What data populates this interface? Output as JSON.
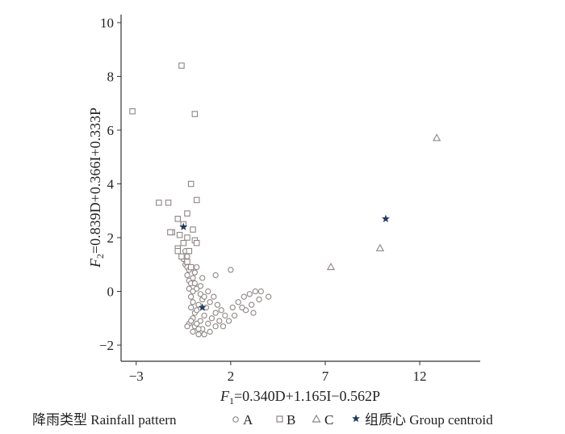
{
  "chart_data": {
    "type": "scatter",
    "xlabel": "F₁=0.340D+1.165I−0.562P",
    "ylabel": "F₂=0.839D+0.366I+0.333P",
    "xlabel_parts": {
      "f": "F",
      "sub": "1",
      "rest": "=0.340D+1.165I−0.562P"
    },
    "ylabel_parts": {
      "f": "F",
      "sub": "2",
      "rest": "=0.839D+0.366I+0.333P"
    },
    "xlim": [
      -3.8,
      15.2
    ],
    "ylim": [
      -2.6,
      10.3
    ],
    "xticks": [
      -3,
      2,
      7,
      12
    ],
    "yticks": [
      -2,
      0,
      2,
      4,
      6,
      8,
      10
    ],
    "grid": false,
    "legend": {
      "title": "降雨类型 Rainfall pattern",
      "entries": [
        {
          "marker": "○",
          "label": "A"
        },
        {
          "marker": "□",
          "label": "B"
        },
        {
          "marker": "△",
          "label": "C"
        },
        {
          "marker": "★",
          "label": "组质心 Group centroid"
        }
      ],
      "placement": "bottom"
    },
    "series": [
      {
        "name": "A",
        "marker": "circle",
        "points": [
          [
            -0.5,
            1.2
          ],
          [
            -0.4,
            1.0
          ],
          [
            -0.3,
            0.9
          ],
          [
            -0.2,
            0.8
          ],
          [
            -0.3,
            0.6
          ],
          [
            -0.2,
            0.4
          ],
          [
            -0.1,
            0.3
          ],
          [
            -0.2,
            0.1
          ],
          [
            0.0,
            0.0
          ],
          [
            -0.1,
            -0.2
          ],
          [
            0.0,
            -0.4
          ],
          [
            -0.1,
            -0.6
          ],
          [
            0.1,
            -0.8
          ],
          [
            0.0,
            -1.0
          ],
          [
            -0.2,
            -1.2
          ],
          [
            0.1,
            -1.3
          ],
          [
            0.0,
            -1.5
          ],
          [
            0.3,
            -1.6
          ],
          [
            0.5,
            -1.4
          ],
          [
            0.8,
            -1.2
          ],
          [
            1.0,
            -1.0
          ],
          [
            1.2,
            -0.8
          ],
          [
            0.6,
            -0.9
          ],
          [
            0.4,
            -1.1
          ],
          [
            0.2,
            -0.7
          ],
          [
            0.3,
            -0.5
          ],
          [
            0.5,
            -0.3
          ],
          [
            0.4,
            -0.1
          ],
          [
            0.2,
            0.1
          ],
          [
            0.1,
            0.3
          ],
          [
            0.0,
            0.5
          ],
          [
            0.1,
            0.7
          ],
          [
            0.2,
            0.9
          ],
          [
            -0.3,
            1.3
          ],
          [
            -0.4,
            1.5
          ],
          [
            0.7,
            -0.6
          ],
          [
            0.9,
            -0.4
          ],
          [
            1.1,
            -0.2
          ],
          [
            1.3,
            -0.5
          ],
          [
            1.5,
            -0.7
          ],
          [
            1.7,
            -0.9
          ],
          [
            1.9,
            -1.1
          ],
          [
            1.2,
            -1.3
          ],
          [
            0.9,
            -1.5
          ],
          [
            0.6,
            -1.6
          ],
          [
            2.1,
            -0.6
          ],
          [
            2.4,
            -0.4
          ],
          [
            2.7,
            -0.2
          ],
          [
            3.0,
            -0.1
          ],
          [
            3.3,
            0.0
          ],
          [
            3.5,
            -0.3
          ],
          [
            3.1,
            -0.5
          ],
          [
            2.8,
            -0.7
          ],
          [
            4.0,
            -0.2
          ],
          [
            3.6,
            0.0
          ],
          [
            1.2,
            0.6
          ],
          [
            2.0,
            0.8
          ],
          [
            0.4,
            0.2
          ],
          [
            0.6,
            -0.2
          ],
          [
            0.8,
            0.0
          ],
          [
            1.4,
            -1.1
          ],
          [
            1.6,
            -1.3
          ],
          [
            0.3,
            -1.4
          ],
          [
            -0.3,
            -1.3
          ],
          [
            -0.1,
            -1.1
          ],
          [
            0.2,
            -1.2
          ],
          [
            2.2,
            -0.9
          ],
          [
            2.6,
            -0.6
          ],
          [
            3.2,
            -0.8
          ],
          [
            0.5,
            0.5
          ]
        ]
      },
      {
        "name": "B",
        "marker": "square",
        "points": [
          [
            -0.6,
            8.4
          ],
          [
            0.1,
            6.6
          ],
          [
            -3.2,
            6.7
          ],
          [
            -0.1,
            4.0
          ],
          [
            0.2,
            3.4
          ],
          [
            -1.8,
            3.3
          ],
          [
            -1.3,
            3.3
          ],
          [
            -0.3,
            2.9
          ],
          [
            -0.8,
            2.7
          ],
          [
            0.0,
            2.3
          ],
          [
            -1.1,
            2.2
          ],
          [
            -0.7,
            2.1
          ],
          [
            -0.3,
            2.0
          ],
          [
            0.1,
            1.9
          ],
          [
            -0.5,
            1.8
          ],
          [
            -0.8,
            1.6
          ],
          [
            -0.2,
            1.5
          ],
          [
            -0.6,
            1.3
          ],
          [
            -0.3,
            1.1
          ],
          [
            -0.1,
            0.9
          ],
          [
            -0.8,
            1.5
          ],
          [
            -1.2,
            2.2
          ],
          [
            -0.5,
            2.5
          ],
          [
            0.2,
            1.8
          ]
        ]
      },
      {
        "name": "C",
        "marker": "triangle",
        "points": [
          [
            12.9,
            5.7
          ],
          [
            9.9,
            1.6
          ],
          [
            7.3,
            0.9
          ]
        ]
      },
      {
        "name": "组质心 Group centroid",
        "marker": "star",
        "points": [
          [
            -0.5,
            2.4
          ],
          [
            0.5,
            -0.6
          ],
          [
            10.2,
            2.7
          ]
        ]
      }
    ]
  }
}
